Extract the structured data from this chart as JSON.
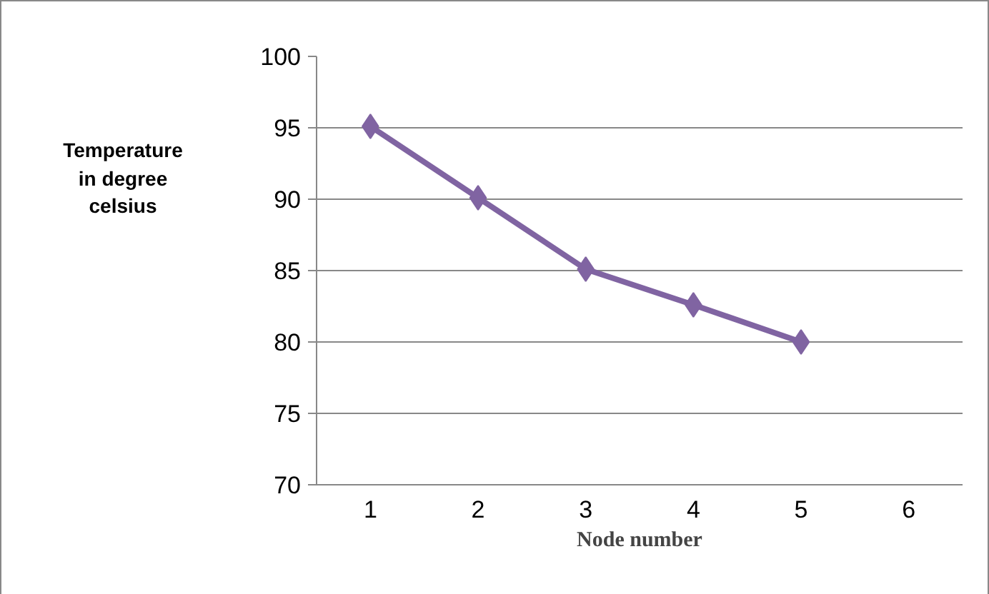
{
  "chart_data": {
    "type": "line",
    "xlabel": "Node number",
    "ylabel": "Temperature in degree celsius",
    "categories": [
      "1",
      "2",
      "3",
      "4",
      "5",
      "6"
    ],
    "series": [
      {
        "color": "#8064a2",
        "values": [
          95.1,
          90.1,
          85.1,
          82.6,
          80.0,
          null
        ]
      }
    ],
    "ylim": [
      70,
      100
    ],
    "yticks": [
      70,
      75,
      80,
      85,
      90,
      95,
      100
    ],
    "grid": "y",
    "marker": "diamond"
  }
}
